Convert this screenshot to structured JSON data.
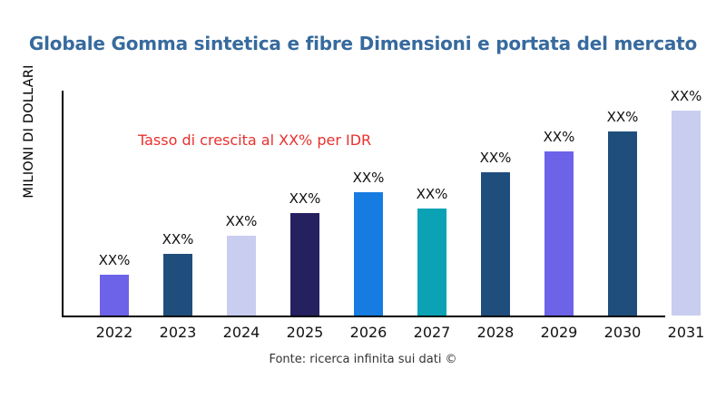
{
  "header": {
    "title": "Globale Gomma sintetica e fibre Dimensioni e portata del mercato",
    "title_color": "#376a9e"
  },
  "annotation": {
    "text": "Tasso di crescita al XX% per IDR",
    "color": "#e8312e"
  },
  "footer": {
    "source_text": "Fonte: ricerca infinita sui dati ©"
  },
  "chart_data": {
    "type": "bar",
    "title": "Globale Gomma sintetica e fibre Dimensioni e portata del mercato",
    "xlabel": "",
    "ylabel": "MILIONI DI DOLLARI",
    "categories": [
      "2022",
      "2023",
      "2024",
      "2025",
      "2026",
      "2027",
      "2028",
      "2029",
      "2030",
      "2031"
    ],
    "values": [
      20,
      30,
      39,
      50,
      60,
      52,
      70,
      80,
      90,
      100
    ],
    "value_unit": "relative-height-percent-of-max",
    "value_labels": [
      "XX%",
      "XX%",
      "XX%",
      "XX%",
      "XX%",
      "XX%",
      "XX%",
      "XX%",
      "XX%",
      "XX%"
    ],
    "bar_colors": [
      "#6c63e8",
      "#1f4e7c",
      "#c9cdf0",
      "#252060",
      "#177ce1",
      "#0aa2b4",
      "#1f4e7c",
      "#6c63e8",
      "#1f4e7c",
      "#c9cdf0"
    ],
    "annotation": "Tasso di crescita al XX% per IDR",
    "source": "Fonte: ricerca infinita sui dati ©",
    "ylim": [
      0,
      100
    ],
    "grid": false,
    "legend": false,
    "axis_color": "#000000"
  }
}
